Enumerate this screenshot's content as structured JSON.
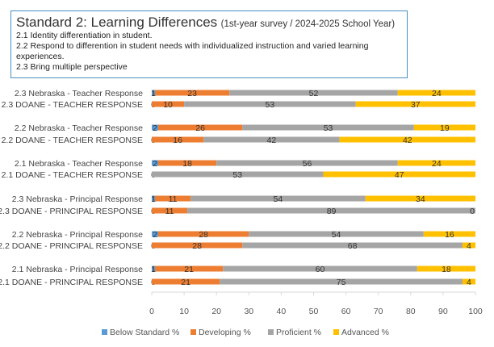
{
  "chart_data": {
    "type": "bar",
    "stacked": true,
    "orientation": "horizontal",
    "title": "Standard 2: Learning Differences",
    "subtitle": "(1st-year survey / 2024-2025 School Year)",
    "notes": [
      "2.1 Identity differentiation in student.",
      "2.2 Respond to differention in student needs with individualized instruction and varied learning experiences.",
      "2.3 Bring multiple perspective"
    ],
    "xlim": [
      0,
      100
    ],
    "xticks": [
      0,
      10,
      20,
      30,
      40,
      50,
      60,
      70,
      80,
      90,
      100
    ],
    "grid": false,
    "legend_position": "bottom",
    "categories": [
      "2.3 Nebraska - Teacher Response",
      "2.3 DOANE - TEACHER RESPONSE",
      "2.2 Nebraska - Teacher Response",
      "2.2 DOANE - TEACHER RESPONSE",
      "2.1 Nebraska - Teacher Response",
      "2.1 DOANE - TEACHER RESPONSE",
      "2.3 Nebraska - Principal Response",
      "2.3  DOANE  - PRINCIPAL RESPONSE",
      "2.2 Nebraska - Principal Response",
      "2.2  DOANE  - PRINCIPAL RESPONSE",
      "2.1 Nebraska - Principal Response",
      "2.1 DOANE - PRINCIPAL RESPONSE"
    ],
    "series": [
      {
        "name": "Below Standard %",
        "color": "#5b9bd5",
        "values": [
          1,
          0,
          2,
          0,
          2,
          0,
          1,
          0,
          2,
          0,
          1,
          0
        ]
      },
      {
        "name": "Developing %",
        "color": "#ed7d31",
        "values": [
          23,
          10,
          26,
          16,
          18,
          0,
          11,
          11,
          28,
          28,
          21,
          21
        ]
      },
      {
        "name": "Proficient %",
        "color": "#a5a5a5",
        "values": [
          52,
          53,
          53,
          42,
          56,
          53,
          54,
          89,
          54,
          68,
          60,
          75
        ]
      },
      {
        "name": "Advanced %",
        "color": "#ffc000",
        "values": [
          24,
          37,
          19,
          42,
          24,
          47,
          34,
          0,
          16,
          4,
          18,
          4
        ]
      }
    ],
    "label_series_visibility": [
      [
        true,
        true,
        true,
        true,
        true,
        true,
        true,
        true,
        true,
        true,
        true,
        true
      ],
      [
        true,
        true,
        true,
        true,
        true,
        false,
        true,
        true,
        true,
        true,
        true,
        true
      ],
      [
        true,
        true,
        true,
        true,
        true,
        true,
        true,
        true,
        true,
        true,
        true,
        true
      ],
      [
        true,
        true,
        true,
        true,
        true,
        true,
        true,
        true,
        true,
        true,
        true,
        true
      ]
    ]
  }
}
